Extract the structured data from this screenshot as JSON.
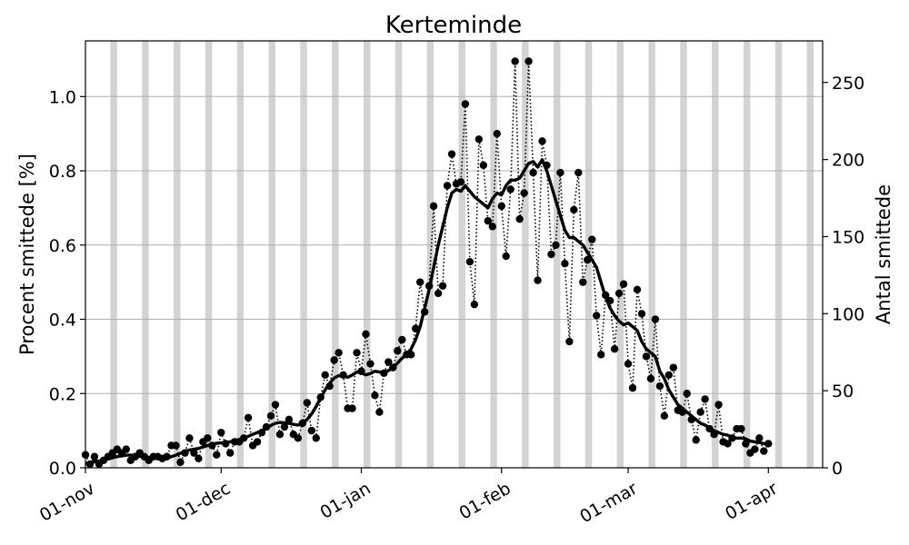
{
  "chart_data": {
    "type": "line",
    "title": "Kerteminde",
    "xlabel": "",
    "ylabel": "Procent smittede [%]",
    "ylabel_right": "Antal smittede",
    "x_start": "2021-11-01",
    "x_range": [
      "2021-11-01",
      "2022-04-13"
    ],
    "ylim": [
      0,
      1.15
    ],
    "ylim_right": [
      0,
      277
    ],
    "yticks": [
      "0.0",
      "0.2",
      "0.4",
      "0.6",
      "0.8",
      "1.0"
    ],
    "yticks_right": [
      "0",
      "50",
      "100",
      "150",
      "200",
      "250"
    ],
    "xticks": [
      {
        "date": "2021-11-01",
        "label": "01-nov"
      },
      {
        "date": "2021-12-01",
        "label": "01-dec"
      },
      {
        "date": "2022-01-01",
        "label": "01-jan"
      },
      {
        "date": "2022-02-01",
        "label": "01-feb"
      },
      {
        "date": "2022-03-01",
        "label": "01-mar"
      },
      {
        "date": "2022-04-01",
        "label": "01-apr"
      }
    ],
    "grid": true,
    "weekend_shading": true,
    "series": [
      {
        "style": "dotted-markers",
        "color": "#000000",
        "values": [
          0.035,
          0.01,
          0.03,
          0.01,
          0.02,
          0.03,
          0.04,
          0.05,
          0.04,
          0.05,
          0.02,
          0.03,
          0.04,
          0.03,
          0.02,
          0.03,
          0.03,
          0.025,
          0.03,
          0.06,
          0.06,
          0.015,
          0.04,
          0.08,
          0.04,
          0.025,
          0.07,
          0.08,
          0.06,
          0.035,
          0.095,
          0.065,
          0.04,
          0.07,
          0.07,
          0.08,
          0.135,
          0.06,
          0.07,
          0.095,
          0.11,
          0.14,
          0.17,
          0.09,
          0.11,
          0.13,
          0.09,
          0.08,
          0.12,
          0.175,
          0.1,
          0.08,
          0.19,
          0.25,
          0.22,
          0.29,
          0.31,
          0.25,
          0.16,
          0.16,
          0.31,
          0.26,
          0.36,
          0.28,
          0.195,
          0.15,
          0.255,
          0.285,
          0.27,
          0.315,
          0.345,
          0.305,
          0.305,
          0.375,
          0.5,
          0.42,
          0.49,
          0.705,
          0.47,
          0.49,
          0.76,
          0.845,
          0.765,
          0.77,
          0.98,
          0.555,
          0.44,
          0.885,
          0.815,
          0.665,
          0.65,
          0.9,
          0.705,
          0.57,
          0.75,
          1.095,
          0.67,
          0.74,
          1.095,
          0.795,
          0.505,
          0.88,
          0.815,
          0.575,
          0.6,
          0.795,
          0.55,
          0.34,
          0.695,
          0.795,
          0.5,
          0.56,
          0.615,
          0.41,
          0.305,
          0.465,
          0.45,
          0.32,
          0.47,
          0.495,
          0.28,
          0.215,
          0.48,
          0.415,
          0.3,
          0.24,
          0.4,
          0.22,
          0.14,
          0.25,
          0.27,
          0.155,
          0.15,
          0.2,
          0.13,
          0.075,
          0.15,
          0.185,
          0.105,
          0.09,
          0.17,
          0.07,
          0.065,
          0.08,
          0.105,
          0.105,
          0.065,
          0.04,
          0.05,
          0.08,
          0.045,
          0.065
        ]
      },
      {
        "style": "solid-thick",
        "color": "#000000",
        "values": [
          0.012,
          0.014,
          0.016,
          0.018,
          0.021,
          0.024,
          0.027,
          0.03,
          0.032,
          0.034,
          0.034,
          0.033,
          0.031,
          0.03,
          0.028,
          0.027,
          0.026,
          0.026,
          0.027,
          0.03,
          0.034,
          0.039,
          0.044,
          0.048,
          0.05,
          0.052,
          0.056,
          0.06,
          0.064,
          0.066,
          0.067,
          0.068,
          0.07,
          0.073,
          0.076,
          0.08,
          0.085,
          0.09,
          0.095,
          0.1,
          0.107,
          0.114,
          0.12,
          0.122,
          0.121,
          0.12,
          0.117,
          0.115,
          0.12,
          0.13,
          0.145,
          0.165,
          0.188,
          0.21,
          0.228,
          0.242,
          0.248,
          0.246,
          0.244,
          0.25,
          0.258,
          0.256,
          0.25,
          0.254,
          0.26,
          0.258,
          0.257,
          0.262,
          0.27,
          0.282,
          0.295,
          0.305,
          0.32,
          0.345,
          0.38,
          0.43,
          0.48,
          0.54,
          0.6,
          0.65,
          0.7,
          0.74,
          0.75,
          0.745,
          0.76,
          0.745,
          0.73,
          0.72,
          0.71,
          0.7,
          0.725,
          0.74,
          0.735,
          0.76,
          0.775,
          0.775,
          0.78,
          0.8,
          0.82,
          0.825,
          0.81,
          0.83,
          0.8,
          0.76,
          0.72,
          0.68,
          0.64,
          0.62,
          0.62,
          0.61,
          0.6,
          0.58,
          0.56,
          0.54,
          0.5,
          0.46,
          0.43,
          0.41,
          0.395,
          0.385,
          0.39,
          0.38,
          0.37,
          0.34,
          0.32,
          0.31,
          0.3,
          0.26,
          0.24,
          0.21,
          0.19,
          0.17,
          0.16,
          0.15,
          0.14,
          0.13,
          0.12,
          0.115,
          0.108,
          0.1,
          0.095,
          0.09,
          0.088,
          0.082,
          0.08,
          0.08,
          0.078,
          0.072,
          0.07,
          0.068,
          0.065,
          0.062
        ]
      }
    ]
  }
}
